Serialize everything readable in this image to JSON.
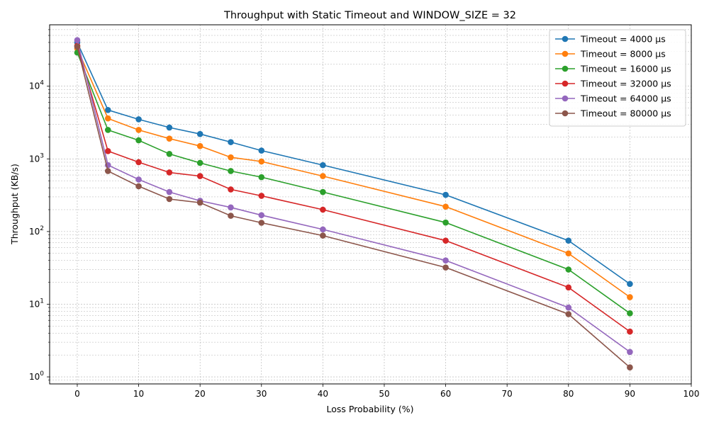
{
  "chart_data": {
    "type": "line",
    "title": "Throughput with Static Timeout and WINDOW_SIZE = 32",
    "xlabel": "Loss Probability (%)",
    "ylabel": "Throughput (KB/s)",
    "x_scale": "linear",
    "y_scale": "log",
    "xlim": [
      -4.5,
      100
    ],
    "ylim": [
      0.8,
      70000
    ],
    "x_ticks": [
      0,
      10,
      20,
      30,
      40,
      50,
      60,
      70,
      80,
      90,
      100
    ],
    "x_tick_labels": [
      "0",
      "10",
      "20",
      "30",
      "40",
      "50",
      "60",
      "70",
      "80",
      "90",
      "100"
    ],
    "y_ticks": [
      1,
      10,
      100,
      1000,
      10000
    ],
    "y_tick_labels": [
      {
        "base": "10",
        "exp": "0"
      },
      {
        "base": "10",
        "exp": "1"
      },
      {
        "base": "10",
        "exp": "2"
      },
      {
        "base": "10",
        "exp": "3"
      },
      {
        "base": "10",
        "exp": "4"
      }
    ],
    "grid": true,
    "grid_minor": true,
    "legend_position": "top-right",
    "x": [
      0,
      5,
      10,
      15,
      20,
      25,
      30,
      40,
      60,
      80,
      90
    ],
    "series": [
      {
        "name": "Timeout = 4000 µs",
        "color": "#1f77b4",
        "values": [
          40000,
          4700,
          3500,
          2700,
          2200,
          1700,
          1300,
          820,
          320,
          75,
          19
        ]
      },
      {
        "name": "Timeout = 8000 µs",
        "color": "#ff7f0e",
        "values": [
          33000,
          3600,
          2500,
          1900,
          1500,
          1050,
          920,
          580,
          220,
          50,
          12.5
        ]
      },
      {
        "name": "Timeout = 16000 µs",
        "color": "#2ca02c",
        "values": [
          29000,
          2500,
          1800,
          1170,
          880,
          680,
          560,
          350,
          133,
          30,
          7.5
        ]
      },
      {
        "name": "Timeout = 32000 µs",
        "color": "#d62728",
        "values": [
          36000,
          1280,
          900,
          650,
          580,
          380,
          310,
          200,
          75,
          17,
          4.2
        ]
      },
      {
        "name": "Timeout = 64000 µs",
        "color": "#9467bd",
        "values": [
          43000,
          820,
          520,
          350,
          265,
          215,
          168,
          107,
          40,
          9,
          2.2
        ]
      },
      {
        "name": "Timeout = 80000 µs",
        "color": "#8c564b",
        "values": [
          35000,
          680,
          420,
          280,
          250,
          165,
          132,
          88,
          32,
          7.3,
          1.35
        ]
      }
    ]
  }
}
